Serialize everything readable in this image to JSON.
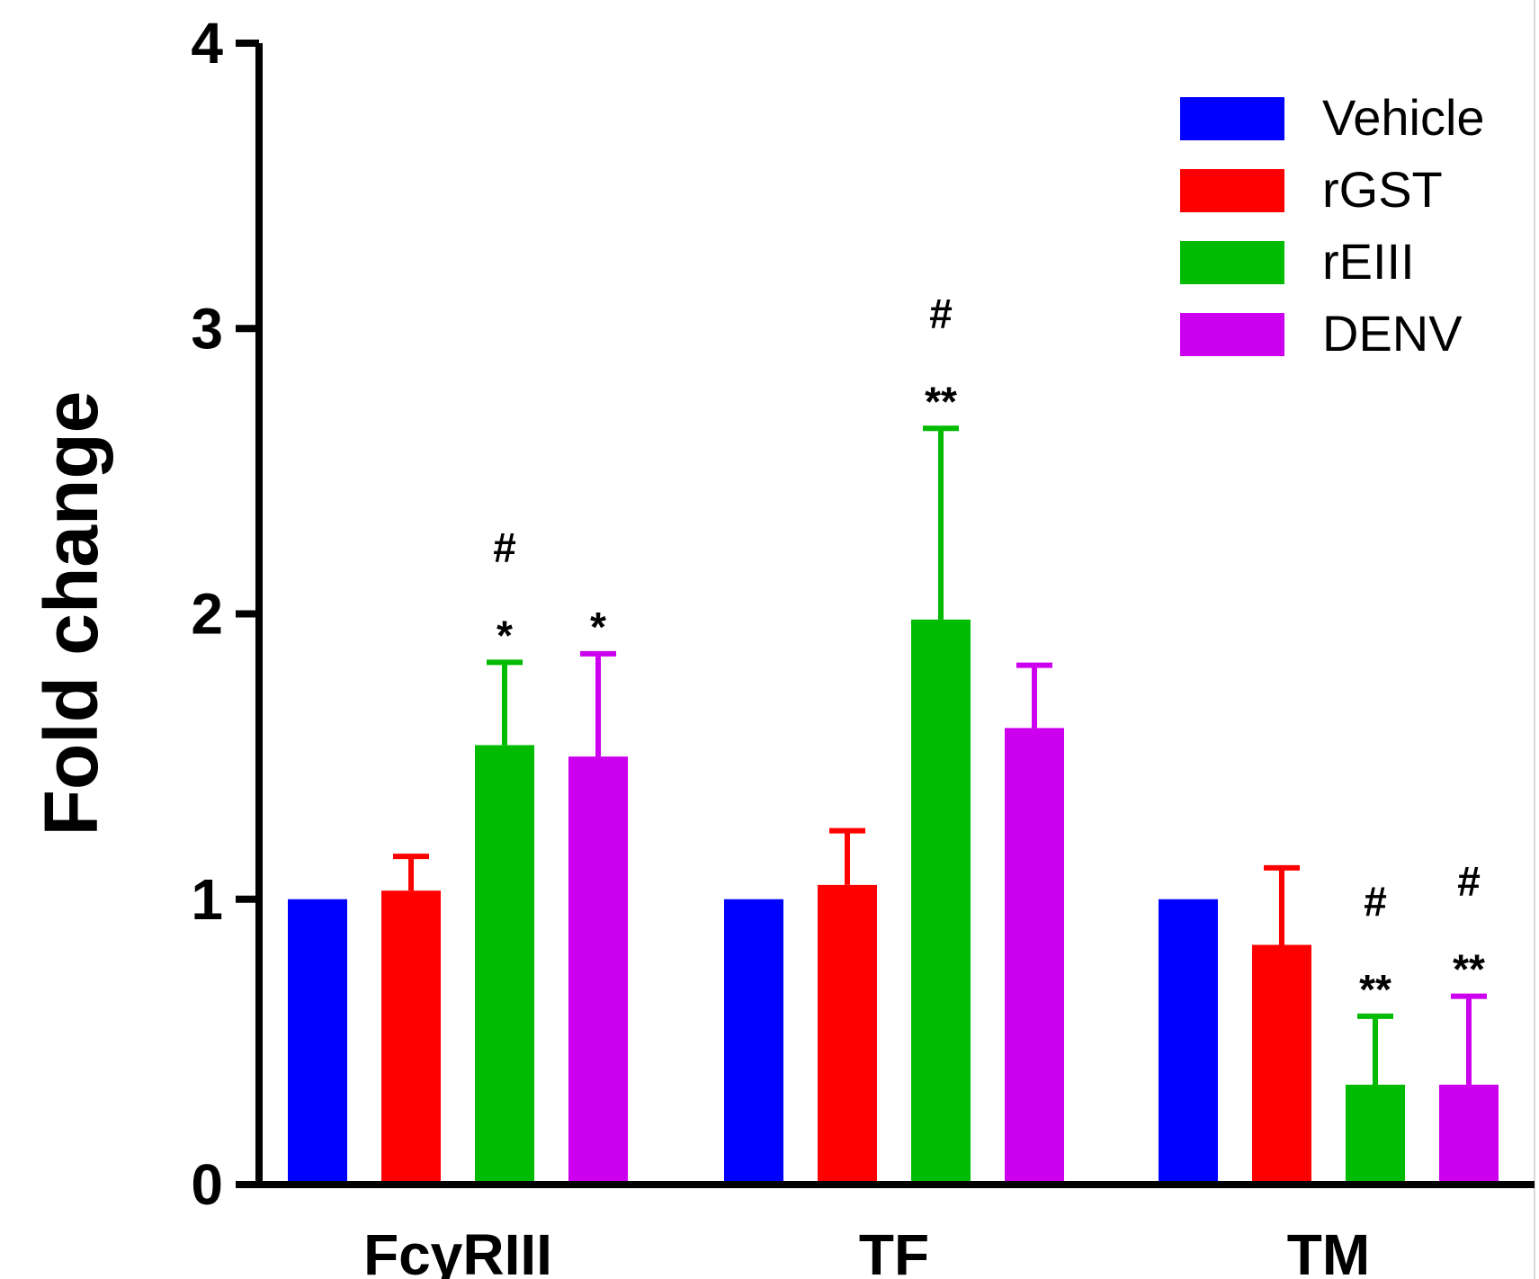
{
  "chart_data": {
    "type": "bar",
    "title": "",
    "xlabel": "",
    "ylabel": "Fold change",
    "ylim": [
      0,
      4
    ],
    "yticks": [
      "0",
      "1",
      "2",
      "3",
      "4"
    ],
    "categories": [
      "FcγRIII",
      "TF",
      "TM"
    ],
    "series": [
      {
        "name": "Vehicle",
        "color": "#0000ff",
        "values": [
          1.0,
          1.0,
          1.0
        ],
        "errors": [
          0,
          0,
          0
        ]
      },
      {
        "name": "rGST",
        "color": "#ff0000",
        "values": [
          1.03,
          1.05,
          0.84
        ],
        "errors": [
          0.12,
          0.19,
          0.27
        ]
      },
      {
        "name": "rEIII",
        "color": "#00bb00",
        "values": [
          1.54,
          1.98,
          0.35
        ],
        "errors": [
          0.29,
          0.67,
          0.24
        ]
      },
      {
        "name": "DENV",
        "color": "#cc00ee",
        "values": [
          1.5,
          1.6,
          0.35
        ],
        "errors": [
          0.36,
          0.22,
          0.31
        ]
      }
    ],
    "annotations": [
      {
        "category": 0,
        "series": 2,
        "lines": [
          "#",
          "*"
        ]
      },
      {
        "category": 0,
        "series": 3,
        "lines": [
          "*"
        ]
      },
      {
        "category": 1,
        "series": 2,
        "lines": [
          "#",
          "**"
        ]
      },
      {
        "category": 2,
        "series": 2,
        "lines": [
          "#",
          "**"
        ]
      },
      {
        "category": 2,
        "series": 3,
        "lines": [
          "#",
          "**"
        ]
      }
    ],
    "legend": {
      "position": "top-right",
      "entries": [
        "Vehicle",
        "rGST",
        "rEIII",
        "DENV"
      ]
    }
  }
}
